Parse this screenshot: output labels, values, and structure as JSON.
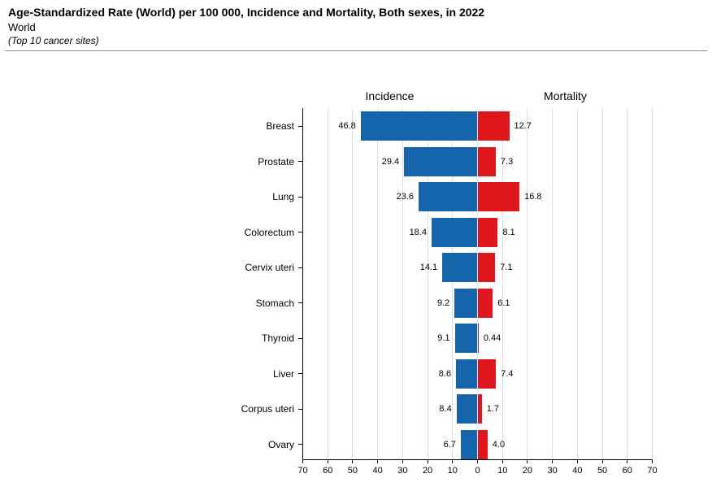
{
  "header": {
    "title": "Age-Standardized Rate (World) per 100 000, Incidence and Mortality, Both sexes, in 2022",
    "subtitle": "World",
    "note": "(Top 10 cancer sites)"
  },
  "chart_data": {
    "type": "bar",
    "orientation": "horizontal-diverging",
    "title": "Age-Standardized Rate (World) per 100 000, Incidence and Mortality, Both sexes, in 2022",
    "categories": [
      "Breast",
      "Prostate",
      "Lung",
      "Colorectum",
      "Cervix uteri",
      "Stomach",
      "Thyroid",
      "Liver",
      "Corpus uteri",
      "Ovary"
    ],
    "series": [
      {
        "name": "Incidence",
        "side": "left",
        "color": "#1565ad",
        "values": [
          46.8,
          29.4,
          23.6,
          18.4,
          14.1,
          9.2,
          9.1,
          8.6,
          8.4,
          6.7
        ],
        "labels": [
          "46.8",
          "29.4",
          "23.6",
          "18.4",
          "14.1",
          "9.2",
          "9.1",
          "8.6",
          "8.4",
          "6.7"
        ]
      },
      {
        "name": "Mortality",
        "side": "right",
        "color": "#df161c",
        "values": [
          12.7,
          7.3,
          16.8,
          8.1,
          7.1,
          6.1,
          0.44,
          7.4,
          1.7,
          4.0
        ],
        "labels": [
          "12.7",
          "7.3",
          "16.8",
          "8.1",
          "7.1",
          "6.1",
          "0.44",
          "7.4",
          "1.7",
          "4.0"
        ]
      }
    ],
    "xlim": [
      -70,
      70
    ],
    "tick_step": 10,
    "tick_labels": [
      "70",
      "60",
      "50",
      "40",
      "30",
      "20",
      "10",
      "0",
      "10",
      "20",
      "30",
      "40",
      "50",
      "60",
      "70"
    ],
    "grid": true,
    "gridline_color": "#dcdcdc",
    "axis_color": "#000000"
  }
}
